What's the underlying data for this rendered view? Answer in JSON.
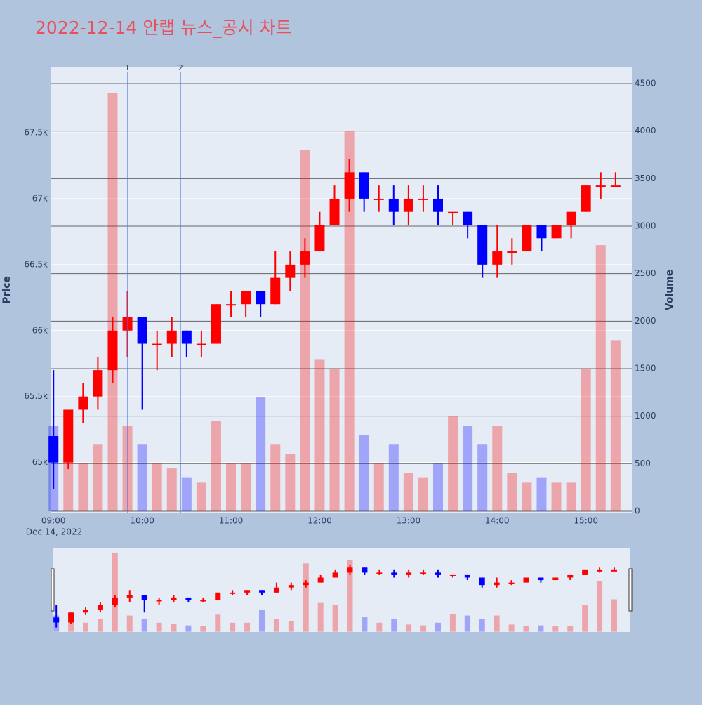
{
  "chart_data": {
    "type": "candlestick",
    "title": "2022-12-14 안랩 뉴스_공시 차트",
    "y_label": "Price",
    "y2_label": "Volume",
    "x_date_label": "Dec 14, 2022",
    "increasing_color": "#ff0000",
    "decreasing_color": "#0000ff",
    "x": [
      "09:00",
      "09:10",
      "09:20",
      "09:30",
      "09:40",
      "09:50",
      "10:00",
      "10:10",
      "10:20",
      "10:30",
      "10:40",
      "10:50",
      "11:00",
      "11:10",
      "11:20",
      "11:30",
      "11:40",
      "11:50",
      "12:00",
      "12:10",
      "12:20",
      "12:30",
      "12:40",
      "12:50",
      "13:00",
      "13:10",
      "13:20",
      "13:30",
      "13:40",
      "13:50",
      "14:00",
      "14:10",
      "14:20",
      "14:30",
      "14:40",
      "14:50",
      "15:00",
      "15:10",
      "15:20"
    ],
    "open": [
      65200,
      65000,
      65400,
      65500,
      65700,
      66000,
      66100,
      65900,
      65900,
      66000,
      65900,
      65900,
      66200,
      66200,
      66300,
      66200,
      66400,
      66500,
      66600,
      66800,
      67000,
      67200,
      67000,
      67000,
      66900,
      67000,
      67000,
      66900,
      66900,
      66800,
      66500,
      66600,
      66600,
      66800,
      66700,
      66800,
      66900,
      67100,
      67100
    ],
    "high": [
      65700,
      65400,
      65600,
      65800,
      66100,
      66300,
      66100,
      66000,
      66100,
      66000,
      66000,
      66200,
      66300,
      66300,
      66300,
      66600,
      66600,
      66700,
      66900,
      67100,
      67300,
      67200,
      67100,
      67100,
      67100,
      67100,
      67100,
      66900,
      66900,
      66800,
      66800,
      66700,
      66800,
      66800,
      66800,
      66900,
      67100,
      67200,
      67200
    ],
    "low": [
      64800,
      64950,
      65300,
      65400,
      65600,
      65800,
      65400,
      65700,
      65800,
      65800,
      65800,
      65900,
      66100,
      66100,
      66100,
      66200,
      66300,
      66400,
      66600,
      66800,
      66900,
      66900,
      66900,
      66800,
      66800,
      66900,
      66800,
      66800,
      66700,
      66400,
      66400,
      66500,
      66600,
      66600,
      66700,
      66700,
      66900,
      67000,
      67100
    ],
    "close": [
      65000,
      65400,
      65500,
      65700,
      66000,
      66100,
      65900,
      65900,
      66000,
      65900,
      65900,
      66200,
      66200,
      66300,
      66200,
      66400,
      66500,
      66600,
      66800,
      67000,
      67200,
      67000,
      67000,
      66900,
      67000,
      67000,
      66900,
      66900,
      66800,
      66500,
      66600,
      66600,
      66800,
      66700,
      66800,
      66900,
      67100,
      67100,
      67100
    ],
    "volume": [
      900,
      600,
      500,
      700,
      4400,
      900,
      700,
      500,
      450,
      350,
      300,
      950,
      500,
      500,
      1200,
      700,
      600,
      3800,
      1600,
      1500,
      4000,
      800,
      500,
      700,
      400,
      350,
      500,
      1000,
      900,
      700,
      900,
      400,
      300,
      350,
      300,
      300,
      1500,
      2800,
      1800
    ],
    "annotations": [
      {
        "x": "09:50",
        "text": "1"
      },
      {
        "x": "10:26",
        "text": "2"
      }
    ],
    "xlim": [
      "08:58",
      "15:31"
    ],
    "xticks": [
      "09:00",
      "10:00",
      "11:00",
      "12:00",
      "13:00",
      "14:00",
      "15:00"
    ],
    "ylim": [
      64620,
      67995
    ],
    "yticks": [
      {
        "value": 65000,
        "label": "65k"
      },
      {
        "value": 65500,
        "label": "65.5k"
      },
      {
        "value": 66000,
        "label": "66k"
      },
      {
        "value": 66500,
        "label": "66.5k"
      },
      {
        "value": 67000,
        "label": "67k"
      },
      {
        "value": 67500,
        "label": "67.5k"
      }
    ],
    "y2lim": [
      -15,
      4670
    ],
    "y2ticks": [
      0,
      500,
      1000,
      1500,
      2000,
      2500,
      3000,
      3500,
      4000,
      4500
    ],
    "grid": true,
    "rangeslider": true
  }
}
